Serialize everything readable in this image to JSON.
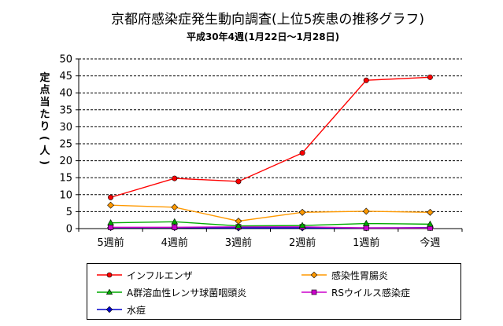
{
  "chart_data": {
    "type": "line",
    "title": "京都府感染症発生動向調査(上位5疾患の推移グラフ)",
    "subtitle": "平成30年4週(1月22日～1月28日)",
    "ylabel": "定点当たり(人)",
    "xlabel": "",
    "categories": [
      "5週前",
      "4週前",
      "3週前",
      "2週前",
      "1週前",
      "今週"
    ],
    "ylim": [
      0,
      50
    ],
    "yticks": [
      0,
      5,
      10,
      15,
      20,
      25,
      30,
      35,
      40,
      45,
      50
    ],
    "grid": true,
    "legend_position": "bottom",
    "series": [
      {
        "name": "インフルエンザ",
        "color": "#ff0000",
        "marker": "circle",
        "values": [
          9.2,
          14.8,
          13.9,
          22.3,
          43.7,
          44.6
        ]
      },
      {
        "name": "感染性胃腸炎",
        "color": "#ff9900",
        "marker": "diamond",
        "values": [
          6.9,
          6.3,
          2.2,
          4.8,
          5.1,
          4.8
        ]
      },
      {
        "name": "A群溶血性レンサ球菌咽頭炎",
        "color": "#00aa00",
        "marker": "triangle",
        "values": [
          1.7,
          2.0,
          0.8,
          0.9,
          1.5,
          1.3
        ]
      },
      {
        "name": "RSウイルス感染症",
        "color": "#cc00cc",
        "marker": "square",
        "values": [
          0.4,
          0.4,
          0.5,
          0.5,
          0.2,
          0.2
        ]
      },
      {
        "name": "水痘",
        "color": "#0000cc",
        "marker": "diamond",
        "values": [
          0.3,
          0.3,
          0.2,
          0.2,
          0.2,
          0.3
        ]
      }
    ]
  }
}
